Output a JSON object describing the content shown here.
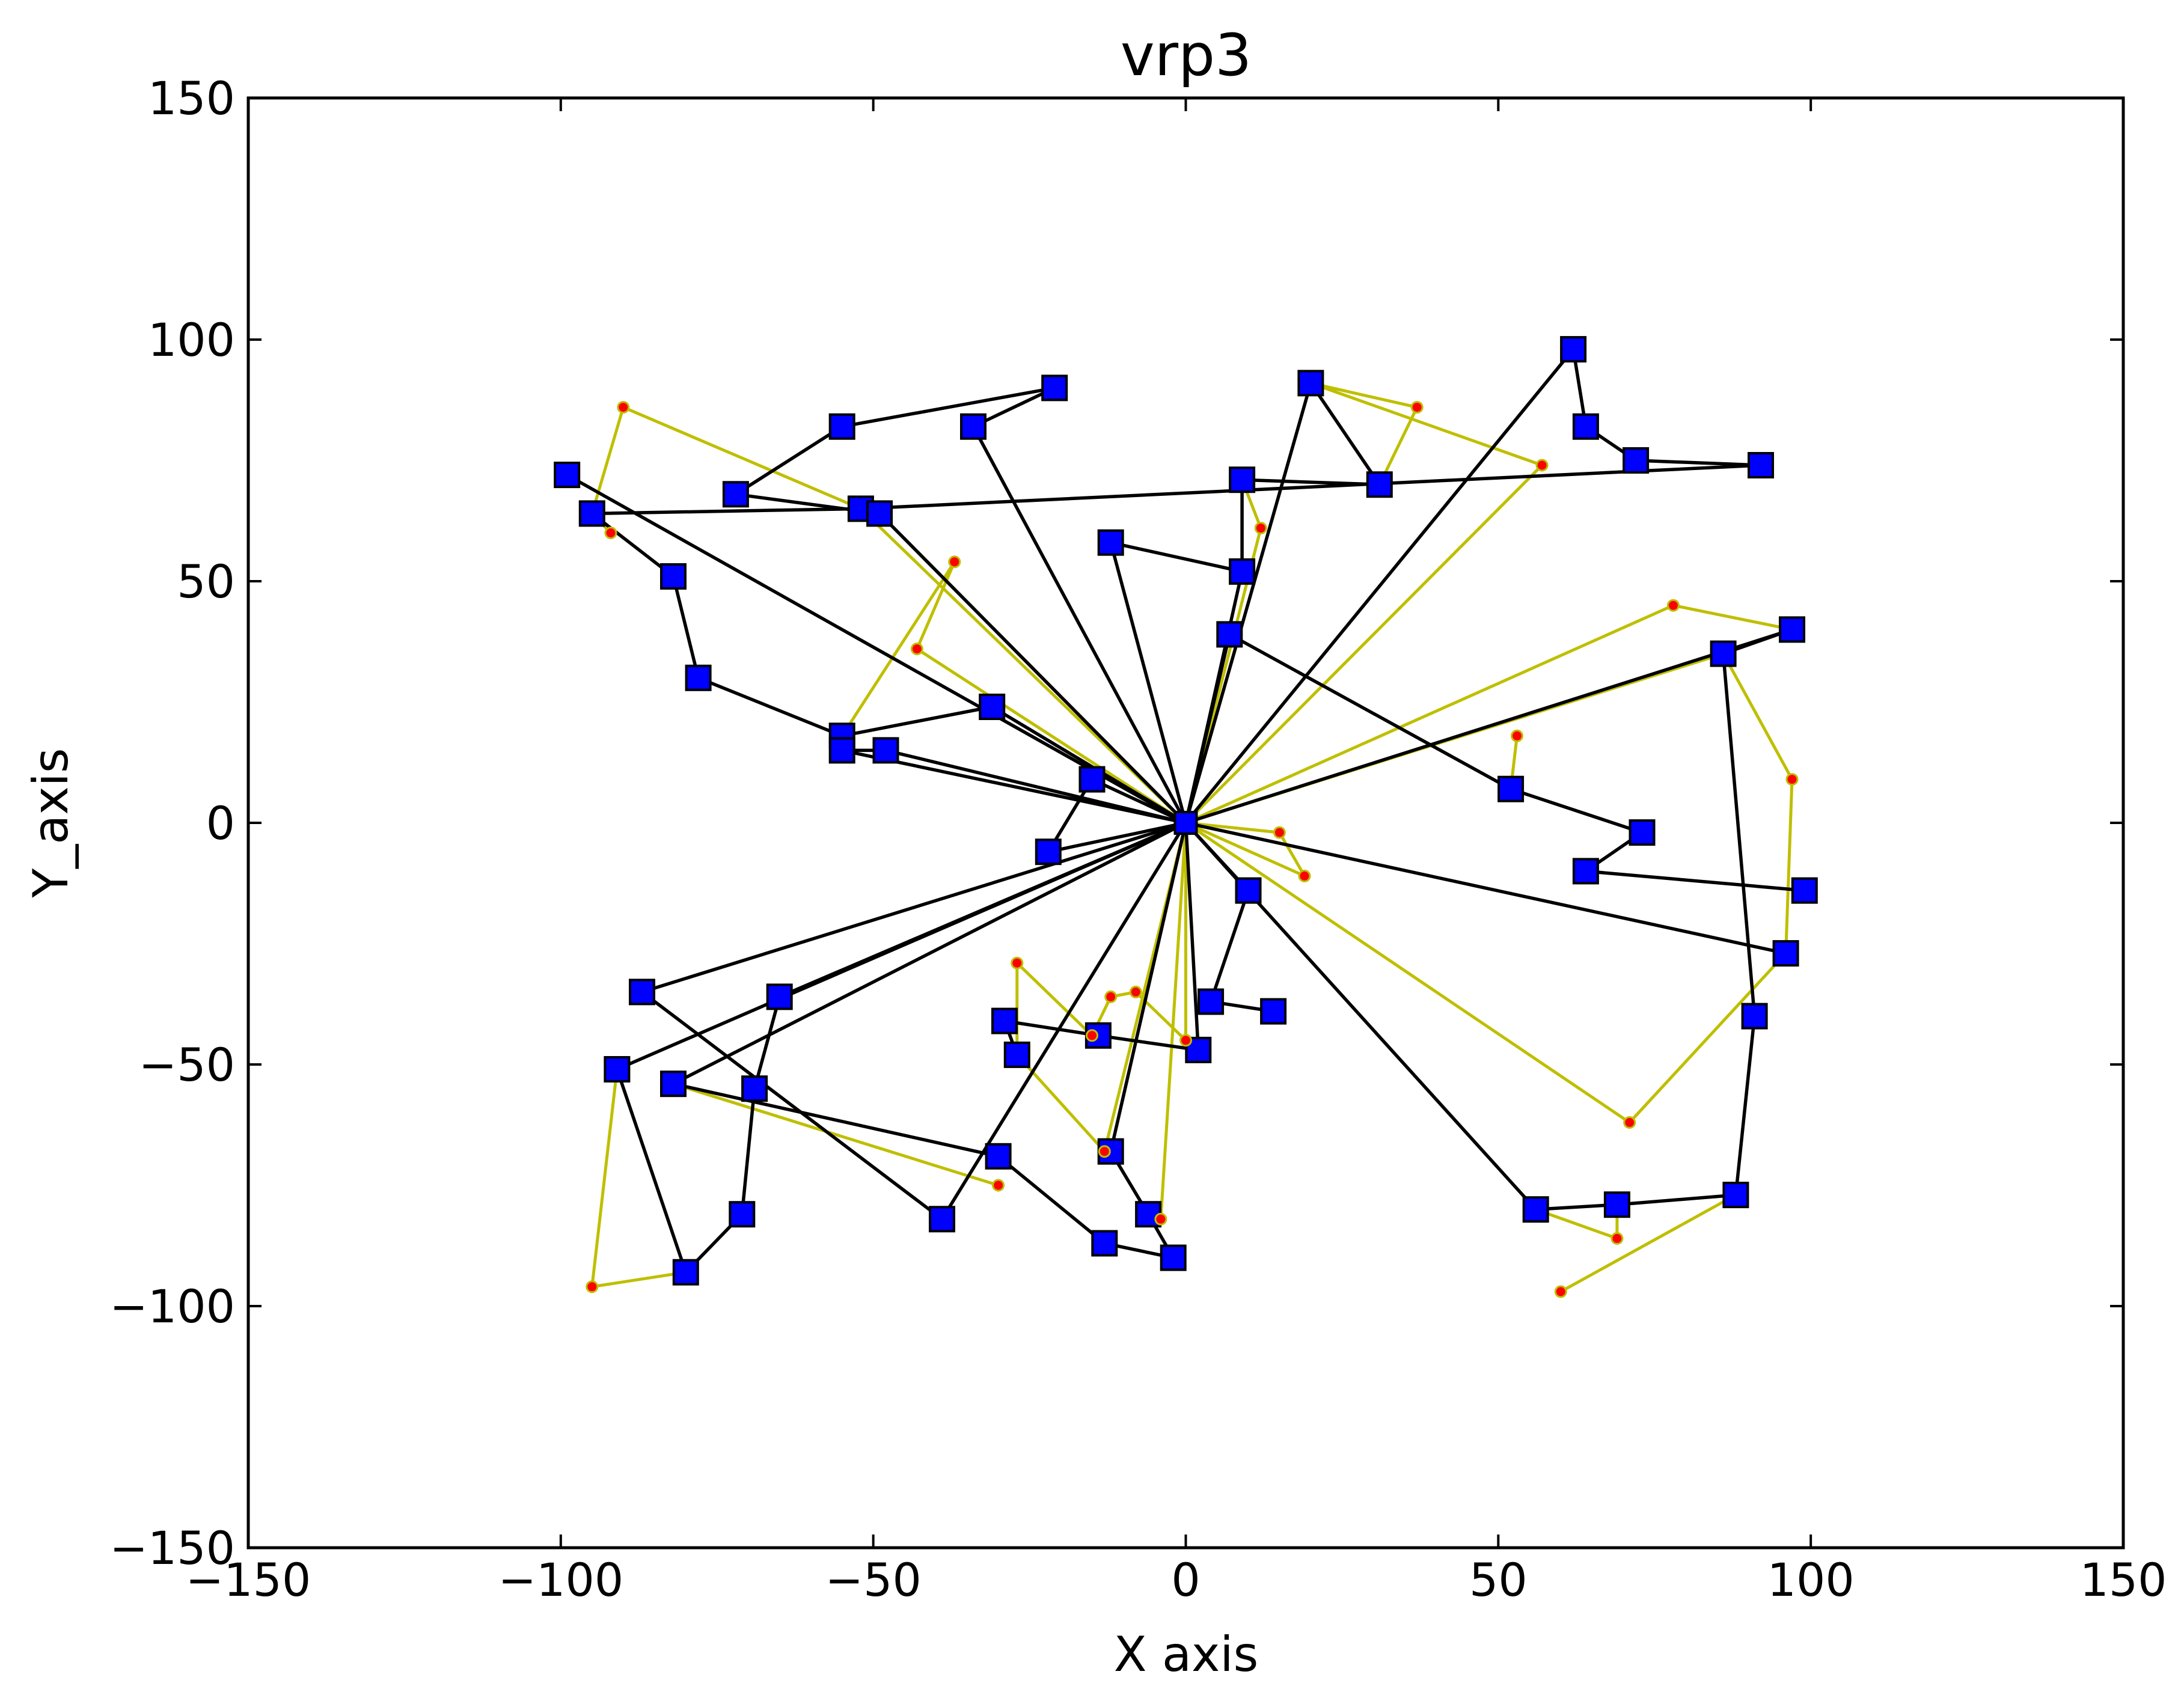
{
  "chart_data": {
    "type": "line",
    "title": "vrp3",
    "xlabel": "X axis",
    "ylabel": "Y_axis",
    "xlim": [
      -150,
      150
    ],
    "ylim": [
      -150,
      150
    ],
    "xticks": [
      -150,
      -100,
      -50,
      0,
      50,
      100,
      150
    ],
    "yticks": [
      -150,
      -100,
      -50,
      0,
      50,
      100,
      150
    ],
    "xtick_labels": [
      "−150",
      "−100",
      "−50",
      "0",
      "50",
      "100",
      "150"
    ],
    "ytick_labels": [
      "−150",
      "−100",
      "−50",
      "0",
      "50",
      "100",
      "150"
    ],
    "grid": false,
    "depot": [
      0,
      0
    ],
    "colors": {
      "route_line": "#000000",
      "initial_line": "#bfbf00",
      "square_marker": "#0000ff",
      "dot_marker": "#ff0000",
      "dot_edge": "#bfbf00"
    },
    "series": [
      {
        "role": "optimized_routes",
        "marker": "square",
        "routes": [
          [
            [
              0,
              0
            ],
            [
              -22,
              -6
            ],
            [
              -15,
              9
            ],
            [
              0,
              0
            ]
          ],
          [
            [
              0,
              0
            ],
            [
              -31,
              24
            ],
            [
              -55,
              18
            ],
            [
              -78,
              30
            ],
            [
              -82,
              51
            ],
            [
              -95,
              64
            ],
            [
              -52,
              65
            ],
            [
              92,
              74
            ],
            [
              72,
              75
            ],
            [
              64,
              82
            ],
            [
              62,
              98
            ],
            [
              0,
              0
            ]
          ],
          [
            [
              0,
              0
            ],
            [
              -49,
              64
            ],
            [
              -72,
              68
            ],
            [
              -55,
              82
            ],
            [
              -21,
              90
            ],
            [
              -34,
              82
            ],
            [
              0,
              0
            ]
          ],
          [
            [
              0,
              0
            ],
            [
              9,
              52
            ],
            [
              9,
              71
            ],
            [
              31,
              70
            ],
            [
              20,
              91
            ],
            [
              0,
              0
            ]
          ],
          [
            [
              0,
              0
            ],
            [
              -12,
              58
            ],
            [
              9,
              52
            ]
          ],
          [
            [
              0,
              0
            ],
            [
              -99,
              72
            ],
            [
              0,
              0
            ]
          ],
          [
            [
              0,
              0
            ],
            [
              -55,
              15
            ],
            [
              -48,
              15
            ],
            [
              0,
              0
            ]
          ],
          [
            [
              0,
              0
            ],
            [
              -87,
              -35
            ],
            [
              -39,
              -82
            ],
            [
              0,
              0
            ]
          ],
          [
            [
              0,
              0
            ],
            [
              -91,
              -51
            ],
            [
              -80,
              -93
            ],
            [
              -71,
              -81
            ],
            [
              -69,
              -55
            ],
            [
              -65,
              -36
            ],
            [
              0,
              0
            ]
          ],
          [
            [
              0,
              0
            ],
            [
              -82,
              -54
            ],
            [
              -30,
              -69
            ],
            [
              -13,
              -87
            ],
            [
              -2,
              -90
            ],
            [
              -6,
              -81
            ],
            [
              -12,
              -68
            ],
            [
              0,
              0
            ]
          ],
          [
            [
              0,
              0
            ],
            [
              10,
              -14
            ],
            [
              4,
              -37
            ],
            [
              14,
              -39
            ]
          ],
          [
            [
              0,
              0
            ],
            [
              7,
              39
            ],
            [
              52,
              7
            ],
            [
              73,
              -2
            ],
            [
              64,
              -10
            ],
            [
              99,
              -14
            ]
          ],
          [
            [
              0,
              0
            ],
            [
              96,
              -27
            ],
            [
              0,
              0
            ]
          ],
          [
            [
              0,
              0
            ],
            [
              97,
              40
            ],
            [
              86,
              35
            ],
            [
              91,
              -40
            ],
            [
              88,
              -77
            ],
            [
              69,
              -79
            ],
            [
              56,
              -80
            ],
            [
              0,
              0
            ]
          ],
          [
            [
              0,
              0
            ],
            [
              2,
              -47
            ],
            [
              -14,
              -44
            ],
            [
              -29,
              -41
            ],
            [
              -27,
              -48
            ]
          ]
        ]
      },
      {
        "role": "initial_routes",
        "marker": "dot",
        "routes": [
          [
            [
              0,
              0
            ],
            [
              -43,
              36
            ],
            [
              -37,
              54
            ],
            [
              -55,
              18
            ]
          ],
          [
            [
              0,
              0
            ],
            [
              -52,
              65
            ],
            [
              -90,
              86
            ],
            [
              -95,
              64
            ],
            [
              -92,
              60
            ]
          ],
          [
            [
              0,
              0
            ],
            [
              12,
              61
            ],
            [
              9,
              71
            ],
            [
              31,
              70
            ],
            [
              37,
              86
            ],
            [
              20,
              91
            ],
            [
              57,
              74
            ],
            [
              0,
              0
            ]
          ],
          [
            [
              0,
              0
            ],
            [
              15,
              -2
            ],
            [
              19,
              -11
            ],
            [
              0,
              0
            ]
          ],
          [
            [
              0,
              0
            ],
            [
              71,
              -62
            ],
            [
              96,
              -27
            ],
            [
              97,
              9
            ],
            [
              86,
              35
            ],
            [
              0,
              0
            ]
          ],
          [
            [
              0,
              0
            ],
            [
              78,
              45
            ],
            [
              97,
              40
            ]
          ],
          [
            [
              0,
              0
            ],
            [
              -4,
              -82
            ],
            [
              -6,
              -81
            ]
          ],
          [
            [
              0,
              0
            ],
            [
              -13,
              -68
            ],
            [
              -27,
              -48
            ],
            [
              -27,
              -29
            ],
            [
              -15,
              -44
            ],
            [
              -12,
              -36
            ],
            [
              -8,
              -35
            ],
            [
              0,
              -45
            ],
            [
              0,
              0
            ]
          ],
          [
            [
              -91,
              -51
            ],
            [
              -95,
              -96
            ],
            [
              -80,
              -93
            ]
          ],
          [
            [
              -82,
              -54
            ],
            [
              -30,
              -75
            ]
          ],
          [
            [
              53,
              18
            ],
            [
              52,
              7
            ],
            [
              73,
              -2
            ]
          ],
          [
            [
              56,
              -80
            ],
            [
              69,
              -86
            ],
            [
              69,
              -79
            ],
            [
              88,
              -77
            ],
            [
              60,
              -97
            ]
          ]
        ]
      }
    ]
  }
}
